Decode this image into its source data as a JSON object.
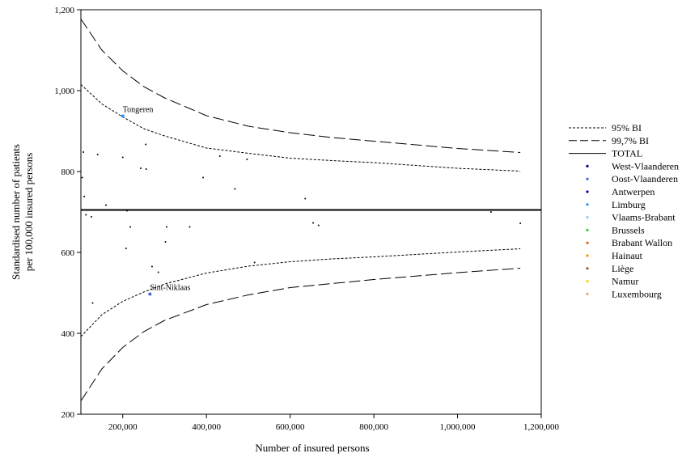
{
  "chart_data": {
    "type": "scatter",
    "title": "",
    "xlabel": "Number of insured persons",
    "ylabel_lines": [
      "Standardised number of patients",
      "per 100,000 insured persons"
    ],
    "xlim": [
      100000,
      1200000
    ],
    "ylim": [
      200,
      1200
    ],
    "x_ticks": [
      200000,
      400000,
      600000,
      800000,
      1000000,
      1200000
    ],
    "x_tick_labels": [
      "200,000",
      "400,000",
      "600,000",
      "800,000",
      "1,000,000",
      "1,200,000"
    ],
    "y_ticks": [
      200,
      400,
      600,
      800,
      1000,
      1200
    ],
    "y_tick_labels": [
      "200",
      "400",
      "600",
      "800",
      "1,000",
      "1,200"
    ],
    "total": 705,
    "bands": [
      {
        "name": "95% BI",
        "style": "dotted",
        "x": [
          100000,
          150000,
          200000,
          250000,
          300000,
          400000,
          500000,
          600000,
          700000,
          800000,
          1000000,
          1150000
        ],
        "upper": [
          1015,
          967,
          935,
          906,
          888,
          858,
          845,
          833,
          827,
          822,
          808,
          801
        ],
        "lower": [
          392,
          446,
          479,
          502,
          522,
          549,
          566,
          577,
          584,
          589,
          601,
          609
        ]
      },
      {
        "name": "99,7% BI",
        "style": "dashed",
        "x": [
          100000,
          150000,
          200000,
          250000,
          300000,
          400000,
          500000,
          600000,
          700000,
          800000,
          1000000,
          1150000
        ],
        "upper": [
          1177,
          1100,
          1049,
          1010,
          982,
          938,
          912,
          896,
          884,
          875,
          857,
          847
        ],
        "lower": [
          233,
          312,
          365,
          404,
          432,
          471,
          495,
          513,
          523,
          533,
          550,
          561
        ]
      }
    ],
    "legend": {
      "position": "right",
      "lines": [
        {
          "label": "95% BI",
          "style": "dotted"
        },
        {
          "label": "99,7% BI",
          "style": "dashed"
        },
        {
          "label": "TOTAL",
          "style": "solid"
        }
      ],
      "regions": [
        {
          "label": "West-Vlaanderen",
          "color": "#000080"
        },
        {
          "label": "Oost-Vlaanderen",
          "color": "#4169e1"
        },
        {
          "label": "Antwerpen",
          "color": "#0000cd"
        },
        {
          "label": "Limburg",
          "color": "#1e90ff"
        },
        {
          "label": "Vlaams-Brabant",
          "color": "#87cefa"
        },
        {
          "label": "Brussels",
          "color": "#32cd32"
        },
        {
          "label": "Brabant Wallon",
          "color": "#d2691e"
        },
        {
          "label": "Hainaut",
          "color": "#ff8c00"
        },
        {
          "label": "Liège",
          "color": "#a0522d"
        },
        {
          "label": "Namur",
          "color": "#ffd700"
        },
        {
          "label": "Luxembourg",
          "color": "#f4a460"
        }
      ]
    },
    "points": [
      {
        "x": 103000,
        "y": 785
      },
      {
        "x": 106000,
        "y": 848
      },
      {
        "x": 108000,
        "y": 738
      },
      {
        "x": 112000,
        "y": 693
      },
      {
        "x": 125000,
        "y": 688
      },
      {
        "x": 128000,
        "y": 475
      },
      {
        "x": 140000,
        "y": 842
      },
      {
        "x": 160000,
        "y": 717
      },
      {
        "x": 200000,
        "y": 937,
        "label": "Tongeren",
        "color": "#1e90ff"
      },
      {
        "x": 200000,
        "y": 835
      },
      {
        "x": 208000,
        "y": 610
      },
      {
        "x": 210000,
        "y": 703
      },
      {
        "x": 218000,
        "y": 663
      },
      {
        "x": 243000,
        "y": 808
      },
      {
        "x": 255000,
        "y": 867
      },
      {
        "x": 256000,
        "y": 806
      },
      {
        "x": 265000,
        "y": 497,
        "label": "Sint-Niklaas",
        "color": "#4169e1"
      },
      {
        "x": 270000,
        "y": 565
      },
      {
        "x": 285000,
        "y": 551
      },
      {
        "x": 302000,
        "y": 626
      },
      {
        "x": 305000,
        "y": 663
      },
      {
        "x": 360000,
        "y": 663
      },
      {
        "x": 392000,
        "y": 785
      },
      {
        "x": 432000,
        "y": 838
      },
      {
        "x": 468000,
        "y": 757
      },
      {
        "x": 497000,
        "y": 830
      },
      {
        "x": 515000,
        "y": 575
      },
      {
        "x": 636000,
        "y": 733
      },
      {
        "x": 655000,
        "y": 673
      },
      {
        "x": 668000,
        "y": 667
      },
      {
        "x": 1080000,
        "y": 700
      },
      {
        "x": 1150000,
        "y": 672
      }
    ]
  }
}
